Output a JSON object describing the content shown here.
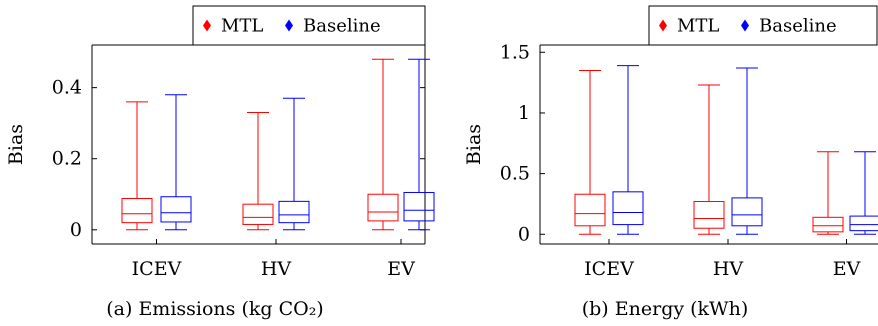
{
  "chart_data": [
    {
      "type": "box",
      "caption": "(a) Emissions (kg CO₂)",
      "ylabel": "Bias",
      "ylim": [
        -0.04,
        0.52
      ],
      "yticks": [
        0,
        0.2,
        0.4
      ],
      "ytick_labels": [
        "0",
        "0.2",
        "0.4"
      ],
      "categories": [
        "ICEV",
        "HV",
        "EV"
      ],
      "legend": {
        "placement": "top-right",
        "entries": [
          "MTL",
          "Baseline"
        ]
      },
      "series": [
        {
          "name": "MTL",
          "color": "#ff0000",
          "boxes": [
            {
              "min": 0.0,
              "q1": 0.02,
              "median": 0.045,
              "q3": 0.088,
              "max": 0.36
            },
            {
              "min": 0.0,
              "q1": 0.015,
              "median": 0.035,
              "q3": 0.072,
              "max": 0.33
            },
            {
              "min": 0.0,
              "q1": 0.025,
              "median": 0.05,
              "q3": 0.1,
              "max": 0.48
            }
          ]
        },
        {
          "name": "Baseline",
          "color": "#0000ff",
          "boxes": [
            {
              "min": 0.0,
              "q1": 0.022,
              "median": 0.048,
              "q3": 0.093,
              "max": 0.38
            },
            {
              "min": 0.0,
              "q1": 0.02,
              "median": 0.042,
              "q3": 0.08,
              "max": 0.37
            },
            {
              "min": 0.0,
              "q1": 0.025,
              "median": 0.055,
              "q3": 0.105,
              "max": 0.48
            }
          ]
        }
      ]
    },
    {
      "type": "box",
      "caption": "(b) Energy (kWh)",
      "ylabel": "Bias",
      "ylim": [
        -0.08,
        1.56
      ],
      "yticks": [
        0,
        0.5,
        1,
        1.5
      ],
      "ytick_labels": [
        "0",
        "0.5",
        "1",
        "1.5"
      ],
      "categories": [
        "ICEV",
        "HV",
        "EV"
      ],
      "legend": {
        "placement": "top-right",
        "entries": [
          "MTL",
          "Baseline"
        ]
      },
      "series": [
        {
          "name": "MTL",
          "color": "#ff0000",
          "boxes": [
            {
              "min": 0.0,
              "q1": 0.07,
              "median": 0.17,
              "q3": 0.33,
              "max": 1.35
            },
            {
              "min": 0.0,
              "q1": 0.05,
              "median": 0.13,
              "q3": 0.27,
              "max": 1.23
            },
            {
              "min": 0.0,
              "q1": 0.02,
              "median": 0.07,
              "q3": 0.14,
              "max": 0.68
            }
          ]
        },
        {
          "name": "Baseline",
          "color": "#0000ff",
          "boxes": [
            {
              "min": 0.0,
              "q1": 0.08,
              "median": 0.18,
              "q3": 0.35,
              "max": 1.39
            },
            {
              "min": 0.0,
              "q1": 0.07,
              "median": 0.16,
              "q3": 0.3,
              "max": 1.37
            },
            {
              "min": 0.0,
              "q1": 0.03,
              "median": 0.08,
              "q3": 0.15,
              "max": 0.68
            }
          ]
        }
      ]
    }
  ]
}
